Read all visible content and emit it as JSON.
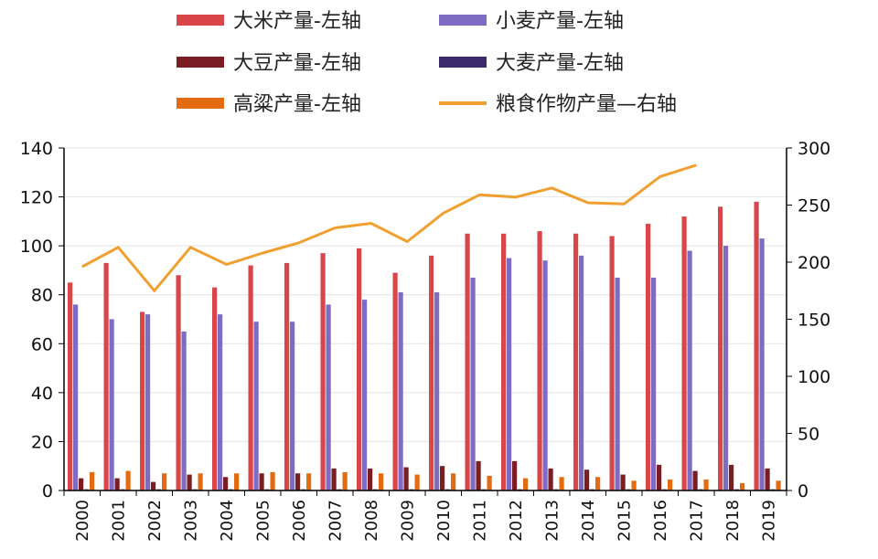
{
  "chart_data": {
    "type": "bar",
    "title": "",
    "xlabel": "",
    "ylabel": "",
    "categories": [
      "2000",
      "2001",
      "2002",
      "2003",
      "2004",
      "2005",
      "2006",
      "2007",
      "2008",
      "2009",
      "2010",
      "2011",
      "2012",
      "2013",
      "2014",
      "2015",
      "2016",
      "2017",
      "2018",
      "2019"
    ],
    "ylim": [
      0,
      140
    ],
    "y2lim": [
      0,
      300
    ],
    "yticks": [
      "0",
      "20",
      "40",
      "60",
      "80",
      "100",
      "120",
      "140"
    ],
    "y2ticks": [
      "0",
      "50",
      "100",
      "150",
      "200",
      "250",
      "300"
    ],
    "legend_position": "top",
    "series": [
      {
        "name": "大米产量-左轴",
        "type": "bar",
        "axis": "left",
        "color": "#d9464a",
        "values": [
          85,
          93,
          73,
          88,
          83,
          92,
          93,
          97,
          99,
          89,
          96,
          105,
          105,
          106,
          105,
          104,
          109,
          112,
          116,
          118
        ]
      },
      {
        "name": "小麦产量-左轴",
        "type": "bar",
        "axis": "left",
        "color": "#7e6bc4",
        "values": [
          76,
          70,
          72,
          65,
          72,
          69,
          69,
          76,
          78,
          81,
          81,
          87,
          95,
          94,
          96,
          87,
          87,
          98,
          100,
          103
        ]
      },
      {
        "name": "大豆产量-左轴",
        "type": "bar",
        "axis": "left",
        "color": "#7a1e24",
        "values": [
          5,
          5,
          3.5,
          6.5,
          5.5,
          7,
          7,
          9,
          9,
          9.5,
          10,
          12,
          12,
          9,
          8.5,
          6.5,
          10.5,
          8,
          10.5,
          9
        ]
      },
      {
        "name": "大麦产量-左轴",
        "type": "bar",
        "axis": "left",
        "color": "#3d2a6b",
        "values": [
          0.5,
          0.5,
          0.5,
          0.5,
          0.5,
          0.5,
          0.5,
          0.5,
          0.5,
          0.5,
          0.5,
          0.5,
          0.5,
          0.5,
          0.5,
          0.5,
          0.5,
          0.5,
          0.5,
          0.5
        ]
      },
      {
        "name": "高粱产量-左轴",
        "type": "bar",
        "axis": "left",
        "color": "#e36b12",
        "values": [
          7.5,
          8,
          7,
          7,
          7,
          7.5,
          7,
          7.5,
          7,
          6.5,
          7,
          6,
          5,
          5.5,
          5.5,
          4,
          4.5,
          4.5,
          3,
          4
        ]
      },
      {
        "name": "粮食作物产量—右轴",
        "type": "line",
        "axis": "right",
        "color": "#f0a030",
        "values": [
          196,
          213,
          175,
          213,
          198,
          208,
          217,
          230,
          234,
          218,
          243,
          259,
          257,
          265,
          252,
          251,
          275,
          285,
          null,
          null
        ]
      }
    ]
  }
}
